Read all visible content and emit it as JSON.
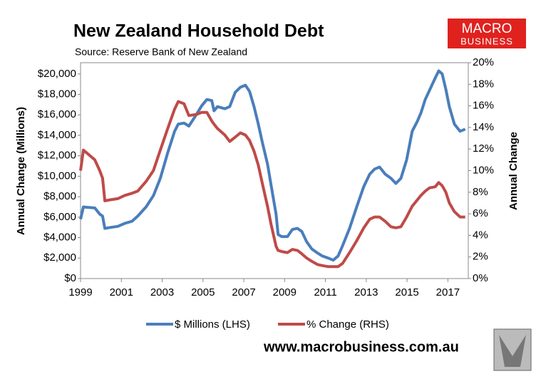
{
  "chart_data": {
    "type": "line",
    "title": "New Zealand Household Debt",
    "subtitle": "Source: Reserve Bank of New Zealand",
    "logo": {
      "line1": "MACRO",
      "line2": "BUSINESS"
    },
    "footer": "www.macrobusiness.com.au",
    "y_label": "Annual Change (Millions)",
    "y2_label": "Annual Change",
    "xlim": [
      1999,
      2018
    ],
    "xticks": [
      1999,
      2001,
      2003,
      2005,
      2007,
      2009,
      2011,
      2013,
      2015,
      2017
    ],
    "ylim": [
      0,
      21100
    ],
    "yticks": [
      {
        "value": 0,
        "label": "$0"
      },
      {
        "value": 2000,
        "label": "$2,000"
      },
      {
        "value": 4000,
        "label": "$4,000"
      },
      {
        "value": 6000,
        "label": "$6,000"
      },
      {
        "value": 8000,
        "label": "$8,000"
      },
      {
        "value": 10000,
        "label": "$10,000"
      },
      {
        "value": 12000,
        "label": "$12,000"
      },
      {
        "value": 14000,
        "label": "$14,000"
      },
      {
        "value": 16000,
        "label": "$16,000"
      },
      {
        "value": 18000,
        "label": "$18,000"
      },
      {
        "value": 20000,
        "label": "$20,000"
      }
    ],
    "y2lim": [
      0,
      20
    ],
    "y2ticks": [
      {
        "value": 0,
        "label": "0%"
      },
      {
        "value": 2,
        "label": "2%"
      },
      {
        "value": 4,
        "label": "4%"
      },
      {
        "value": 6,
        "label": "6%"
      },
      {
        "value": 8,
        "label": "8%"
      },
      {
        "value": 10,
        "label": "10%"
      },
      {
        "value": 12,
        "label": "12%"
      },
      {
        "value": 14,
        "label": "14%"
      },
      {
        "value": 16,
        "label": "16%"
      },
      {
        "value": 18,
        "label": "18%"
      },
      {
        "value": 20,
        "label": "20%"
      }
    ],
    "grid": false,
    "legend": "bottom",
    "x": [
      1999.0,
      1999.14,
      1999.7,
      1999.94,
      2000.08,
      2000.19,
      2000.47,
      2000.82,
      2001.17,
      2001.52,
      2001.8,
      2002.21,
      2002.57,
      2002.91,
      2003.27,
      2003.61,
      2003.79,
      2004.07,
      2004.31,
      2004.67,
      2004.94,
      2005.19,
      2005.43,
      2005.54,
      2005.71,
      2006.07,
      2006.31,
      2006.58,
      2006.83,
      2007.08,
      2007.28,
      2007.5,
      2007.71,
      2007.91,
      2008.16,
      2008.34,
      2008.58,
      2008.68,
      2008.86,
      2009.14,
      2009.38,
      2009.63,
      2009.84,
      2010.08,
      2010.33,
      2010.61,
      2010.85,
      2011.14,
      2011.38,
      2011.62,
      2011.84,
      2012.18,
      2012.53,
      2012.88,
      2013.17,
      2013.41,
      2013.65,
      2013.93,
      2014.21,
      2014.45,
      2014.7,
      2014.98,
      2015.25,
      2015.51,
      2015.68,
      2015.89,
      2016.1,
      2016.38,
      2016.55,
      2016.72,
      2016.9,
      2017.07,
      2017.32,
      2017.6,
      2017.85
    ],
    "series": [
      {
        "name": "$ Millions (LHS)",
        "color": "#4a7ebb",
        "axis": "y",
        "values": [
          5800,
          7000,
          6900,
          6300,
          6100,
          4900,
          5000,
          5100,
          5400,
          5600,
          6100,
          7000,
          8100,
          9800,
          12300,
          14400,
          15100,
          15200,
          14900,
          16000,
          16900,
          17500,
          17400,
          16400,
          16800,
          16600,
          16800,
          18200,
          18700,
          18900,
          18300,
          16800,
          15100,
          13300,
          11200,
          9100,
          6300,
          4300,
          4100,
          4100,
          4800,
          4900,
          4600,
          3600,
          2900,
          2500,
          2200,
          2000,
          1800,
          2200,
          3200,
          4900,
          7000,
          9000,
          10200,
          10700,
          10900,
          10200,
          9800,
          9300,
          9800,
          11600,
          14400,
          15400,
          16200,
          17500,
          18400,
          19600,
          20300,
          20000,
          18500,
          16800,
          15100,
          14400,
          14600
        ]
      },
      {
        "name": "% Change (RHS)",
        "color": "#be4b48",
        "axis": "y2",
        "values": [
          10.0,
          11.9,
          11.0,
          10.0,
          9.3,
          7.2,
          7.3,
          7.4,
          7.7,
          7.9,
          8.1,
          9.0,
          10.0,
          11.9,
          13.9,
          15.7,
          16.4,
          16.2,
          15.1,
          15.2,
          15.4,
          15.4,
          14.6,
          14.3,
          13.9,
          13.3,
          12.7,
          13.1,
          13.5,
          13.3,
          12.8,
          11.8,
          10.5,
          8.8,
          6.7,
          5.0,
          3.0,
          2.6,
          2.5,
          2.4,
          2.7,
          2.6,
          2.3,
          1.9,
          1.6,
          1.3,
          1.2,
          1.1,
          1.1,
          1.1,
          1.4,
          2.4,
          3.5,
          4.7,
          5.5,
          5.7,
          5.7,
          5.3,
          4.8,
          4.7,
          4.8,
          5.7,
          6.7,
          7.3,
          7.7,
          8.1,
          8.4,
          8.5,
          8.9,
          8.6,
          8.0,
          7.0,
          6.2,
          5.7,
          5.7
        ]
      }
    ]
  }
}
